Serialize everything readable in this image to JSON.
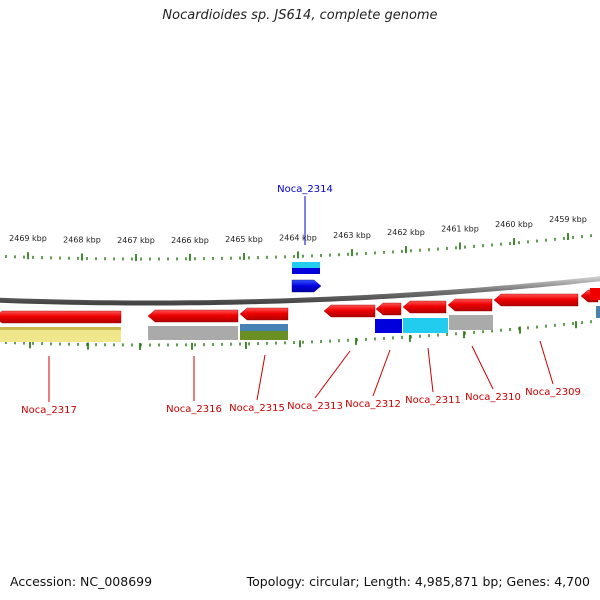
{
  "title": "Nocardioides sp. JS614, complete genome",
  "footer": {
    "accession": "Accession: NC_008699",
    "stats": "Topology: circular; Length: 4,985,871 bp; Genes: 4,700"
  },
  "scale_labels": [
    "2469 kbp",
    "2468 kbp",
    "2467 kbp",
    "2466 kbp",
    "2465 kbp",
    "2464 kbp",
    "2463 kbp",
    "2462 kbp",
    "2461 kbp",
    "2460 kbp",
    "2459 kbp"
  ],
  "genes": [
    {
      "name": "Noca_2317",
      "color": "#cc0000"
    },
    {
      "name": "Noca_2316",
      "color": "#cc0000"
    },
    {
      "name": "Noca_2315",
      "color": "#cc0000"
    },
    {
      "name": "Noca_2314",
      "color": "#0000cc"
    },
    {
      "name": "Noca_2313",
      "color": "#cc0000"
    },
    {
      "name": "Noca_2312",
      "color": "#cc0000"
    },
    {
      "name": "Noca_2311",
      "color": "#cc0000"
    },
    {
      "name": "Noca_2310",
      "color": "#cc0000"
    },
    {
      "name": "Noca_2309",
      "color": "#cc0000"
    }
  ],
  "colors": {
    "gene_red": "#ee0000",
    "gene_blue": "#0000dd",
    "cog_cyan": "#22ccee",
    "cog_gray": "#aaaaaa",
    "cog_yellow": "#f0e68c",
    "cog_steelblue": "#4682b4",
    "cog_olive": "#6b8e23",
    "backbone": "#888888",
    "tick_green": "#2e7d1a"
  }
}
